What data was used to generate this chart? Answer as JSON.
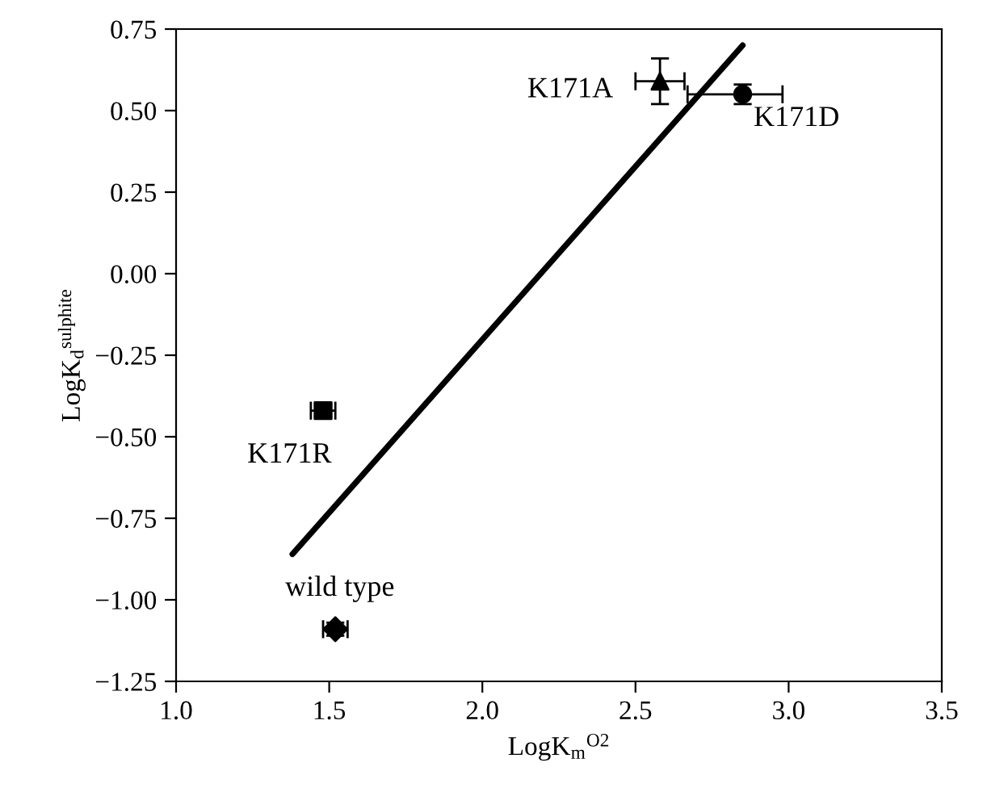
{
  "chart_data": {
    "type": "scatter",
    "xlabel": "LogK$_{m}$$^{O2}$",
    "ylabel": "LogK$_{d}$$^{sulphite}$",
    "xlim": [
      1.0,
      3.5
    ],
    "xticks": [
      {
        "value": 1.0,
        "label": "1.0"
      },
      {
        "value": 1.5,
        "label": "1.5"
      },
      {
        "value": 2.0,
        "label": "2.0"
      },
      {
        "value": 2.5,
        "label": "2.5"
      },
      {
        "value": 3.0,
        "label": "3.0"
      },
      {
        "value": 3.5,
        "label": "3.5"
      }
    ],
    "ylim": [
      -1.25,
      0.75
    ],
    "yticks": [
      {
        "value": -1.25,
        "label": "−1.25"
      },
      {
        "value": -1.0,
        "label": "−1.00"
      },
      {
        "value": -0.75,
        "label": "−0.75"
      },
      {
        "value": -0.5,
        "label": "−0.50"
      },
      {
        "value": -0.25,
        "label": "−0.25"
      },
      {
        "value": 0.0,
        "label": "0.00"
      },
      {
        "value": 0.25,
        "label": "0.25"
      },
      {
        "value": 0.5,
        "label": "0.50"
      },
      {
        "value": 0.75,
        "label": "0.75"
      }
    ],
    "grid": false,
    "legend": false,
    "series": [
      {
        "marker": "diamond",
        "color": "#000000",
        "x": [
          1.52
        ],
        "values": [
          -1.09
        ],
        "errors": [
          0.02
        ],
        "xerrors": [
          0.04
        ]
      },
      {
        "marker": "square",
        "color": "#000000",
        "x": [
          1.48
        ],
        "values": [
          -0.42
        ],
        "errors": [
          0.02
        ],
        "xerrors": [
          0.04
        ]
      },
      {
        "marker": "triangle",
        "color": "#000000",
        "x": [
          2.58
        ],
        "values": [
          0.59
        ],
        "errors": [
          0.07
        ],
        "xerrors": [
          0.08
        ]
      },
      {
        "marker": "circle",
        "color": "#000000",
        "x": [
          2.85
        ],
        "values": [
          0.55
        ],
        "errors": [
          0.03
        ],
        "xerrors": [
          [
            2.67,
            2.98
          ]
        ]
      },
      {
        "type": "line",
        "marker": "none",
        "line_style": "solid",
        "color": "#000000",
        "x": [
          1.38,
          2.85
        ],
        "values": [
          -0.86,
          0.7
        ]
      }
    ],
    "annotations": [
      {
        "text": "wild type",
        "x": 1.52,
        "y": -1.09
      },
      {
        "text": "K171R",
        "x": 1.48,
        "y": -0.42
      },
      {
        "text": "K171A",
        "x": 2.58,
        "y": 0.59
      },
      {
        "text": "K171D",
        "x": 2.85,
        "y": 0.55
      }
    ]
  }
}
